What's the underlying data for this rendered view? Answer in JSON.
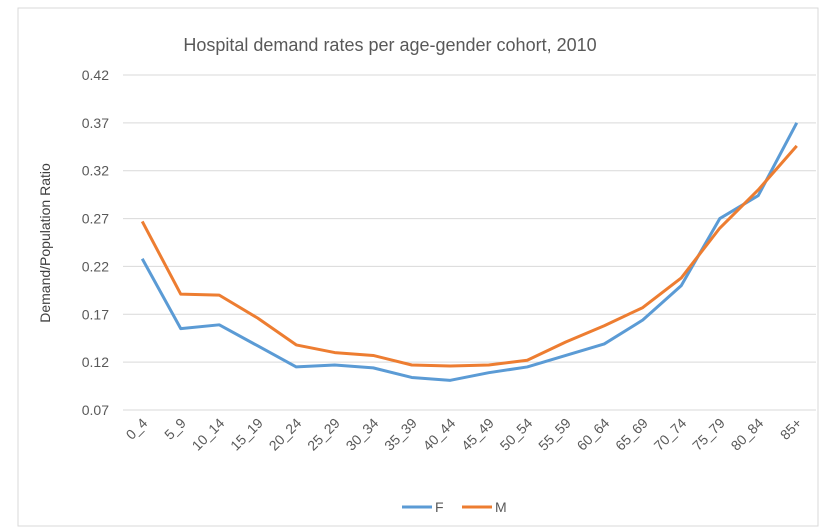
{
  "chart_data": {
    "type": "line",
    "title": "Hospital demand rates per age-gender cohort, 2010",
    "y_label": "Demand/Population Ratio",
    "categories": [
      "0_4",
      "5_9",
      "10_14",
      "15_19",
      "20_24",
      "25_29",
      "30_34",
      "35_39",
      "40_44",
      "45_49",
      "50_54",
      "55_59",
      "60_64",
      "65_69",
      "70_74",
      "75_79",
      "80_84",
      "85+"
    ],
    "series": [
      {
        "name": "F",
        "color": "#5b9bd5",
        "values": [
          0.228,
          0.155,
          0.159,
          0.137,
          0.115,
          0.117,
          0.114,
          0.104,
          0.101,
          0.109,
          0.115,
          0.127,
          0.139,
          0.164,
          0.2,
          0.27,
          0.294,
          0.37
        ]
      },
      {
        "name": "M",
        "color": "#ed7d31",
        "values": [
          0.267,
          0.191,
          0.19,
          0.166,
          0.138,
          0.13,
          0.127,
          0.117,
          0.116,
          0.117,
          0.122,
          0.141,
          0.158,
          0.177,
          0.208,
          0.26,
          0.3,
          0.346
        ]
      }
    ],
    "ylim": [
      0.07,
      0.42
    ],
    "yticks": [
      0.07,
      0.12,
      0.17,
      0.22,
      0.27,
      0.32,
      0.37,
      0.42
    ],
    "grid": true,
    "legend": "bottom"
  }
}
